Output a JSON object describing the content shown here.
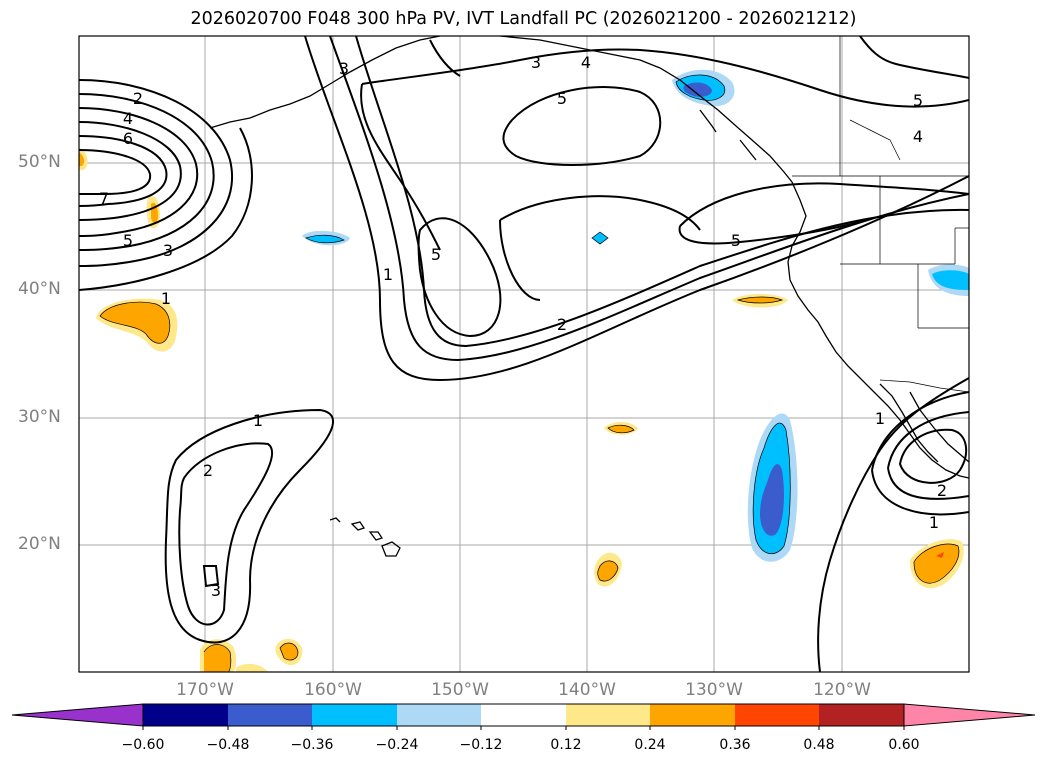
{
  "title": "2026020700 F048 300 hPa PV, IVT Landfall PC (2026021200 - 2026021212)",
  "map": {
    "lat_labels": [
      {
        "text": "50°N",
        "lat": 50
      },
      {
        "text": "40°N",
        "lat": 40
      },
      {
        "text": "30°N",
        "lat": 30
      },
      {
        "text": "20°N",
        "lat": 20
      }
    ],
    "lon_labels": [
      {
        "text": "170°W",
        "lon": -170
      },
      {
        "text": "160°W",
        "lon": -160
      },
      {
        "text": "150°W",
        "lon": -150
      },
      {
        "text": "140°W",
        "lon": -140
      },
      {
        "text": "130°W",
        "lon": -130
      },
      {
        "text": "120°W",
        "lon": -120
      }
    ],
    "contour_labels": [
      "1",
      "2",
      "3",
      "4",
      "5",
      "6",
      "7"
    ]
  },
  "colorbar": {
    "ticks": [
      "−0.60",
      "−0.48",
      "−0.36",
      "−0.24",
      "−0.12",
      "0.12",
      "0.24",
      "0.36",
      "0.48",
      "0.60"
    ],
    "colors": {
      "lt_-0.60": "#9932cc",
      "-0.60_-0.48": "#00008b",
      "-0.48_-0.36": "#3a5ccc",
      "-0.36_-0.24": "#00bfff",
      "-0.24_-0.12": "#add8f6",
      "-0.12_0.12": "#ffffff",
      "0.12_0.24": "#ffe88a",
      "0.24_0.36": "#ffa500",
      "0.36_0.48": "#ff4500",
      "0.48_0.60": "#b22222",
      "gt_0.60": "#ff85a8"
    }
  }
}
